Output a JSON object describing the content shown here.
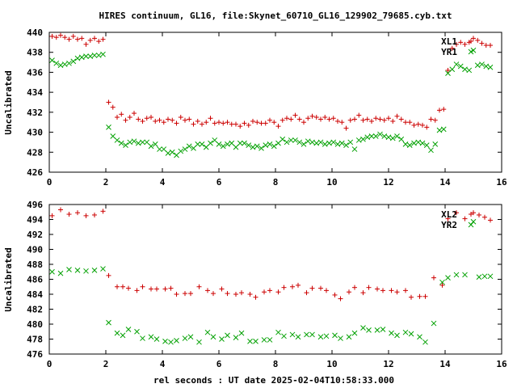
{
  "chart_data": [
    {
      "type": "scatter",
      "title": "HIRES continuum, GL16, file:Skynet_60710_GL16_129902_79685.cyb.txt",
      "xlabel": "",
      "ylabel": "Uncalibrated",
      "xlim": [
        0,
        16
      ],
      "ylim": [
        426,
        440
      ],
      "xticks": [
        0,
        2,
        4,
        6,
        8,
        10,
        12,
        14,
        16
      ],
      "yticks": [
        426,
        428,
        430,
        432,
        434,
        436,
        438,
        440
      ],
      "grid": false,
      "legend": "top-right",
      "series": [
        {
          "name": "XL1",
          "marker": "plus",
          "color": "#cc0000",
          "x": [
            0.1,
            0.25,
            0.4,
            0.55,
            0.7,
            0.85,
            1.0,
            1.15,
            1.3,
            1.45,
            1.6,
            1.75,
            1.9,
            2.1,
            2.25,
            2.4,
            2.55,
            2.7,
            2.85,
            3.0,
            3.15,
            3.3,
            3.45,
            3.6,
            3.75,
            3.9,
            4.05,
            4.2,
            4.35,
            4.5,
            4.65,
            4.8,
            4.95,
            5.1,
            5.25,
            5.4,
            5.55,
            5.7,
            5.85,
            6.0,
            6.15,
            6.3,
            6.45,
            6.6,
            6.75,
            6.9,
            7.05,
            7.2,
            7.35,
            7.5,
            7.65,
            7.8,
            7.95,
            8.1,
            8.25,
            8.4,
            8.55,
            8.7,
            8.85,
            9.0,
            9.15,
            9.3,
            9.45,
            9.6,
            9.75,
            9.9,
            10.05,
            10.2,
            10.35,
            10.5,
            10.65,
            10.8,
            10.95,
            11.1,
            11.25,
            11.4,
            11.55,
            11.7,
            11.85,
            12.0,
            12.15,
            12.3,
            12.45,
            12.6,
            12.75,
            12.9,
            13.05,
            13.2,
            13.35,
            13.5,
            13.65,
            13.8,
            13.95,
            14.1,
            14.25,
            14.4,
            14.55,
            14.7,
            14.85,
            15.0,
            15.15,
            15.3,
            15.45,
            15.6
          ],
          "y": [
            439.6,
            439.5,
            439.7,
            439.5,
            439.3,
            439.6,
            439.3,
            439.4,
            438.8,
            439.2,
            439.4,
            439.1,
            439.3,
            433.0,
            432.5,
            431.5,
            431.8,
            431.2,
            431.5,
            431.9,
            431.3,
            431.1,
            431.4,
            431.5,
            431.1,
            431.2,
            431.0,
            431.3,
            431.2,
            430.9,
            431.5,
            431.2,
            431.3,
            430.8,
            431.1,
            430.8,
            431.0,
            431.4,
            430.9,
            431.0,
            430.9,
            431.0,
            430.8,
            430.8,
            430.6,
            430.9,
            430.7,
            431.1,
            431.0,
            430.9,
            430.9,
            431.2,
            431.0,
            430.6,
            431.2,
            431.4,
            431.3,
            431.7,
            431.3,
            431.0,
            431.4,
            431.6,
            431.5,
            431.3,
            431.5,
            431.3,
            431.4,
            431.1,
            431.0,
            430.4,
            431.2,
            431.3,
            431.7,
            431.2,
            431.3,
            431.1,
            431.4,
            431.3,
            431.2,
            431.4,
            431.1,
            431.6,
            431.3,
            431.0,
            431.0,
            430.7,
            430.8,
            430.7,
            430.5,
            431.3,
            431.2,
            432.2,
            432.3,
            436.2,
            438.4,
            438.8,
            439.0,
            438.8,
            439.0,
            439.4,
            439.2,
            438.9,
            438.7,
            438.7
          ]
        },
        {
          "name": "YR1",
          "marker": "cross",
          "color": "#00a000",
          "x": [
            0.1,
            0.25,
            0.4,
            0.55,
            0.7,
            0.85,
            1.0,
            1.15,
            1.3,
            1.45,
            1.6,
            1.75,
            1.9,
            2.1,
            2.25,
            2.4,
            2.55,
            2.7,
            2.85,
            3.0,
            3.15,
            3.3,
            3.45,
            3.6,
            3.75,
            3.9,
            4.05,
            4.2,
            4.35,
            4.5,
            4.65,
            4.8,
            4.95,
            5.1,
            5.25,
            5.4,
            5.55,
            5.7,
            5.85,
            6.0,
            6.15,
            6.3,
            6.45,
            6.6,
            6.75,
            6.9,
            7.05,
            7.2,
            7.35,
            7.5,
            7.65,
            7.8,
            7.95,
            8.1,
            8.25,
            8.4,
            8.55,
            8.7,
            8.85,
            9.0,
            9.15,
            9.3,
            9.45,
            9.6,
            9.75,
            9.9,
            10.05,
            10.2,
            10.35,
            10.5,
            10.65,
            10.8,
            10.95,
            11.1,
            11.25,
            11.4,
            11.55,
            11.7,
            11.85,
            12.0,
            12.15,
            12.3,
            12.45,
            12.6,
            12.75,
            12.9,
            13.05,
            13.2,
            13.35,
            13.5,
            13.65,
            13.8,
            13.95,
            14.1,
            14.25,
            14.4,
            14.55,
            14.7,
            14.85,
            15.0,
            15.15,
            15.3,
            15.45,
            15.6
          ],
          "y": [
            437.2,
            436.9,
            436.7,
            436.8,
            436.9,
            437.1,
            437.4,
            437.5,
            437.6,
            437.6,
            437.7,
            437.7,
            437.8,
            430.5,
            429.6,
            429.2,
            428.9,
            428.7,
            429.0,
            429.1,
            428.9,
            429.0,
            429.0,
            428.6,
            428.8,
            428.3,
            428.3,
            427.9,
            428.0,
            427.7,
            428.1,
            428.3,
            428.6,
            428.4,
            428.8,
            428.8,
            428.5,
            428.9,
            429.2,
            428.8,
            428.6,
            428.8,
            428.9,
            428.5,
            428.9,
            428.9,
            428.7,
            428.5,
            428.6,
            428.4,
            428.7,
            428.8,
            428.6,
            428.9,
            429.3,
            429.0,
            429.2,
            429.2,
            429.0,
            428.8,
            429.1,
            429.0,
            428.9,
            429.0,
            428.8,
            428.9,
            429.0,
            428.8,
            428.9,
            428.7,
            429.0,
            428.3,
            429.2,
            429.3,
            429.5,
            429.6,
            429.6,
            429.8,
            429.6,
            429.5,
            429.4,
            429.6,
            429.3,
            428.8,
            428.7,
            428.9,
            429.0,
            428.9,
            428.7,
            428.2,
            428.8,
            430.2,
            430.3,
            435.9,
            436.3,
            436.8,
            436.6,
            436.3,
            436.2,
            438.2,
            436.7,
            436.8,
            436.6,
            436.5
          ]
        }
      ]
    },
    {
      "type": "scatter",
      "title": "",
      "xlabel": "rel seconds : UT date 2025-02-04T10:58:33.000",
      "ylabel": "Uncalibrated",
      "xlim": [
        0,
        16
      ],
      "ylim": [
        476,
        496
      ],
      "xticks": [
        0,
        2,
        4,
        6,
        8,
        10,
        12,
        14,
        16
      ],
      "yticks": [
        476,
        478,
        480,
        482,
        484,
        486,
        488,
        490,
        492,
        494,
        496
      ],
      "grid": false,
      "legend": "top-right",
      "series": [
        {
          "name": "XL2",
          "marker": "plus",
          "color": "#cc0000",
          "x": [
            0.1,
            0.4,
            0.7,
            1.0,
            1.3,
            1.6,
            1.9,
            2.1,
            2.4,
            2.6,
            2.8,
            3.1,
            3.3,
            3.6,
            3.8,
            4.1,
            4.3,
            4.5,
            4.8,
            5.0,
            5.3,
            5.6,
            5.8,
            6.1,
            6.3,
            6.6,
            6.8,
            7.1,
            7.3,
            7.6,
            7.8,
            8.1,
            8.3,
            8.6,
            8.8,
            9.1,
            9.3,
            9.6,
            9.8,
            10.1,
            10.3,
            10.6,
            10.8,
            11.1,
            11.3,
            11.6,
            11.8,
            12.1,
            12.3,
            12.6,
            12.8,
            13.1,
            13.3,
            13.6,
            13.9,
            14.1,
            14.4,
            14.7,
            15.0,
            15.2,
            15.4,
            15.6
          ],
          "y": [
            494.5,
            495.3,
            494.7,
            494.9,
            494.5,
            494.6,
            495.1,
            486.5,
            485.0,
            485.0,
            484.8,
            484.5,
            485.0,
            484.7,
            484.7,
            484.7,
            484.8,
            484.0,
            484.1,
            484.1,
            485.0,
            484.5,
            484.1,
            484.7,
            484.1,
            484.0,
            484.2,
            484.0,
            483.6,
            484.3,
            484.5,
            484.3,
            484.9,
            485.0,
            485.2,
            484.2,
            484.8,
            484.8,
            484.5,
            483.9,
            483.4,
            484.3,
            484.9,
            484.2,
            484.9,
            484.7,
            484.5,
            484.5,
            484.3,
            484.5,
            483.6,
            483.7,
            483.7,
            486.2,
            485.2,
            494.1,
            494.9,
            494.1,
            494.9,
            494.6,
            494.3,
            493.9
          ]
        },
        {
          "name": "YR2",
          "marker": "cross",
          "color": "#00a000",
          "x": [
            0.1,
            0.4,
            0.7,
            1.0,
            1.3,
            1.6,
            1.9,
            2.1,
            2.4,
            2.6,
            2.8,
            3.1,
            3.3,
            3.6,
            3.8,
            4.1,
            4.3,
            4.5,
            4.8,
            5.0,
            5.3,
            5.6,
            5.8,
            6.1,
            6.3,
            6.6,
            6.8,
            7.1,
            7.3,
            7.6,
            7.8,
            8.1,
            8.3,
            8.6,
            8.8,
            9.1,
            9.3,
            9.6,
            9.8,
            10.1,
            10.3,
            10.6,
            10.8,
            11.1,
            11.3,
            11.6,
            11.8,
            12.1,
            12.3,
            12.6,
            12.8,
            13.1,
            13.3,
            13.6,
            13.9,
            14.1,
            14.4,
            14.7,
            15.0,
            15.2,
            15.4,
            15.6
          ],
          "y": [
            487.0,
            486.8,
            487.3,
            487.2,
            487.1,
            487.2,
            487.4,
            480.2,
            478.8,
            478.5,
            479.3,
            479.0,
            478.1,
            478.3,
            478.0,
            477.7,
            477.6,
            477.8,
            478.1,
            478.3,
            477.6,
            478.9,
            478.3,
            478.0,
            478.5,
            478.2,
            478.8,
            477.7,
            477.7,
            477.9,
            477.9,
            478.9,
            478.4,
            478.6,
            478.3,
            478.6,
            478.6,
            478.3,
            478.4,
            478.5,
            478.1,
            478.3,
            478.8,
            479.5,
            479.2,
            479.2,
            479.3,
            478.8,
            478.5,
            478.9,
            478.7,
            478.3,
            477.6,
            480.1,
            485.6,
            486.2,
            486.6,
            486.6,
            493.7,
            486.3,
            486.4,
            486.4
          ]
        }
      ]
    }
  ]
}
